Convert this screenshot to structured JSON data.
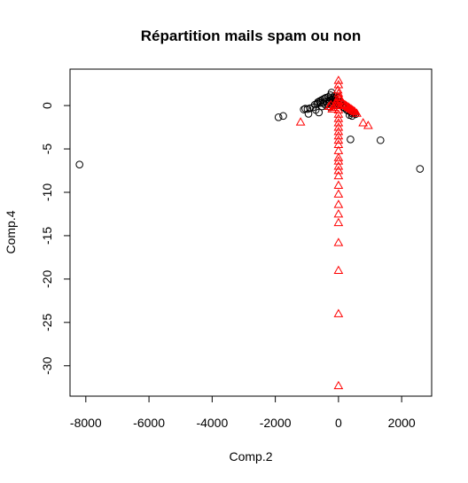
{
  "chart_data": {
    "type": "scatter",
    "title": "Répartition mails spam ou non",
    "xlabel": "Comp.2",
    "ylabel": "Comp.4",
    "xlim": [
      -8500,
      2950
    ],
    "ylim": [
      -33.5,
      4.2
    ],
    "xticks": [
      -8000,
      -6000,
      -4000,
      -2000,
      0,
      2000
    ],
    "xtick_labels": [
      "-8000",
      "-6000",
      "-4000",
      "-2000",
      "0",
      "2000"
    ],
    "yticks": [
      0,
      -5,
      -10,
      -15,
      -20,
      -25,
      -30
    ],
    "ytick_labels": [
      "0",
      "-5",
      "-10",
      "-15",
      "-20",
      "-25",
      "-30"
    ],
    "grid": false,
    "colors": {
      "non_spam": "#000000",
      "spam": "#ff0000"
    },
    "series": [
      {
        "marker": "circle",
        "color": "#000000",
        "points": [
          [
            -8200,
            -6.8
          ],
          [
            2580,
            -7.3
          ],
          [
            1330,
            -4.0
          ],
          [
            380,
            -3.9
          ],
          [
            -1900,
            -1.35
          ],
          [
            -1750,
            -1.2
          ],
          [
            -1100,
            -0.45
          ],
          [
            -1050,
            -0.35
          ],
          [
            -980,
            -0.4
          ],
          [
            -950,
            -0.95
          ],
          [
            -900,
            -0.3
          ],
          [
            -800,
            -0.2
          ],
          [
            -750,
            0.1
          ],
          [
            -720,
            -0.5
          ],
          [
            -680,
            0.2
          ],
          [
            -650,
            0.4
          ],
          [
            -620,
            -0.8
          ],
          [
            -600,
            0.5
          ],
          [
            -580,
            0.3
          ],
          [
            -550,
            0.6
          ],
          [
            -520,
            -0.1
          ],
          [
            -500,
            0.7
          ],
          [
            -480,
            0.3
          ],
          [
            -450,
            0.8
          ],
          [
            -420,
            0.1
          ],
          [
            -400,
            0.9
          ],
          [
            -380,
            0.5
          ],
          [
            -350,
            0.2
          ],
          [
            -320,
            1.0
          ],
          [
            -300,
            0.4
          ],
          [
            -280,
            0.6
          ],
          [
            -260,
            -0.2
          ],
          [
            -250,
            1.2
          ],
          [
            -230,
            0.3
          ],
          [
            -220,
            1.5
          ],
          [
            -200,
            0.7
          ],
          [
            -180,
            0.2
          ],
          [
            -160,
            0.9
          ],
          [
            -150,
            0.5
          ],
          [
            -130,
            1.1
          ],
          [
            -120,
            0.4
          ],
          [
            -100,
            0.8
          ],
          [
            -80,
            0.3
          ],
          [
            -60,
            0.6
          ],
          [
            -40,
            0.2
          ],
          [
            -20,
            0.9
          ],
          [
            20,
            0.4
          ],
          [
            60,
            0.2
          ],
          [
            100,
            0.0
          ],
          [
            150,
            -0.2
          ],
          [
            200,
            -0.3
          ],
          [
            260,
            -0.5
          ],
          [
            320,
            -0.6
          ],
          [
            380,
            -0.7
          ],
          [
            420,
            -0.9
          ],
          [
            460,
            -0.8
          ],
          [
            500,
            -0.9
          ],
          [
            540,
            -1.0
          ],
          [
            430,
            -1.2
          ],
          [
            350,
            -1.1
          ]
        ]
      },
      {
        "marker": "triangle",
        "color": "#ff0000",
        "points": [
          [
            -1200,
            -1.9
          ],
          [
            780,
            -2.0
          ],
          [
            940,
            -2.3
          ],
          [
            580,
            -0.9
          ],
          [
            520,
            -0.7
          ],
          [
            480,
            -0.6
          ],
          [
            440,
            -0.5
          ],
          [
            400,
            -0.4
          ],
          [
            360,
            -0.3
          ],
          [
            320,
            -0.2
          ],
          [
            280,
            -0.1
          ],
          [
            240,
            0.0
          ],
          [
            200,
            0.1
          ],
          [
            160,
            0.2
          ],
          [
            120,
            0.4
          ],
          [
            80,
            0.6
          ],
          [
            40,
            0.9
          ],
          [
            -40,
            0.7
          ],
          [
            -80,
            0.3
          ],
          [
            -120,
            0.0
          ],
          [
            -160,
            -0.2
          ],
          [
            -200,
            -0.4
          ],
          [
            -240,
            0.1
          ],
          [
            -300,
            -0.1
          ],
          [
            -20,
            1.8
          ],
          [
            0,
            2.4
          ],
          [
            0,
            2.9
          ],
          [
            0,
            1.4
          ],
          [
            0,
            1.0
          ],
          [
            0,
            0.5
          ],
          [
            0,
            0.0
          ],
          [
            0,
            -0.5
          ],
          [
            0,
            -1.0
          ],
          [
            0,
            -1.5
          ],
          [
            0,
            -2.0
          ],
          [
            0,
            -2.5
          ],
          [
            0,
            -3.0
          ],
          [
            0,
            -3.5
          ],
          [
            0,
            -4.0
          ],
          [
            0,
            -4.5
          ],
          [
            0,
            -5.2
          ],
          [
            0,
            -6.0
          ],
          [
            0,
            -6.4
          ],
          [
            0,
            -7.0
          ],
          [
            0,
            -7.5
          ],
          [
            0,
            -8.1
          ],
          [
            0,
            -9.2
          ],
          [
            0,
            -10.2
          ],
          [
            0,
            -11.4
          ],
          [
            0,
            -12.5
          ],
          [
            0,
            -13.5
          ],
          [
            0,
            -15.8
          ],
          [
            0,
            -19.0
          ],
          [
            0,
            -24.0
          ],
          [
            0,
            -32.3
          ]
        ]
      }
    ]
  }
}
